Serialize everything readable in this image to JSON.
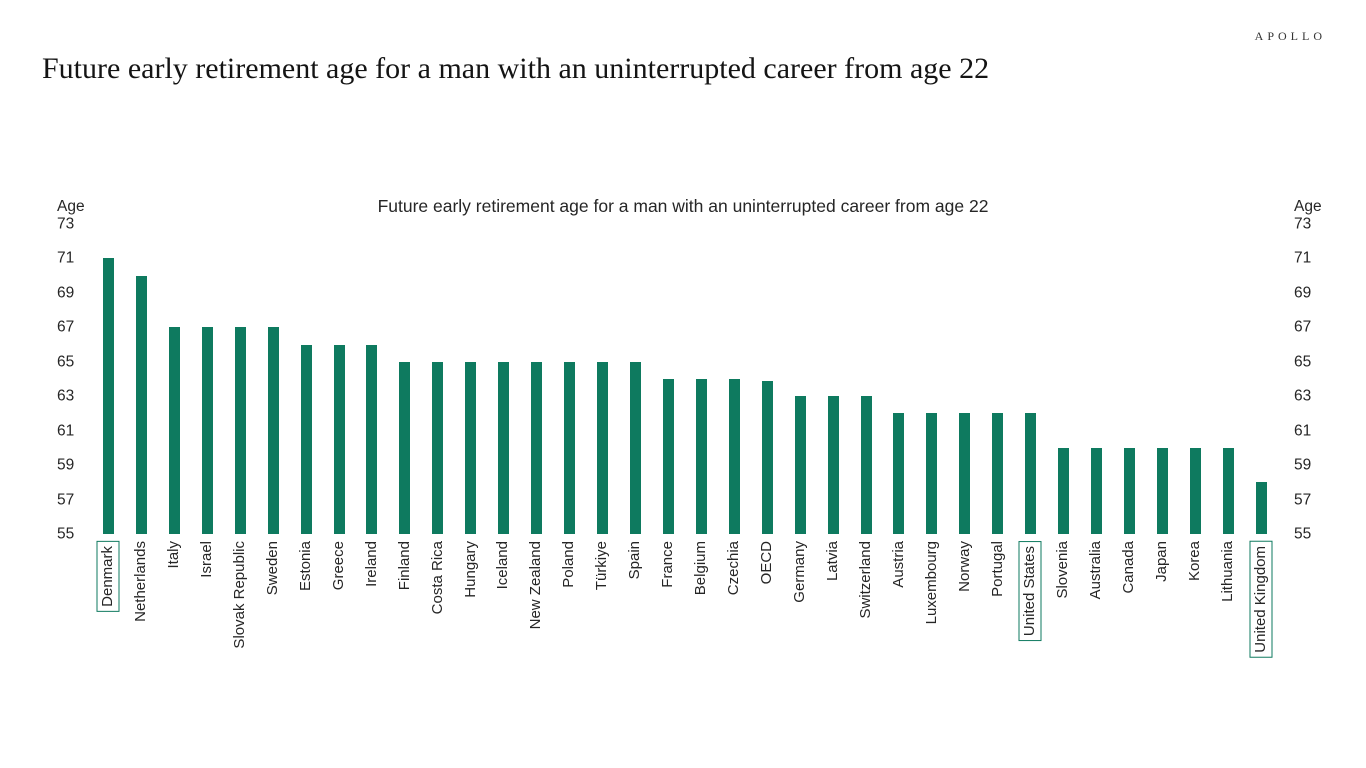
{
  "header": {
    "brand": "APOLLO",
    "title": "Future early retirement age for a man with an uninterrupted career from age 22"
  },
  "chart_data": {
    "type": "bar",
    "title": "Future early retirement age for a man with an uninterrupted career from age 22",
    "ylabel": "Age",
    "ylim": [
      55,
      73
    ],
    "yticks": [
      73,
      71,
      69,
      67,
      65,
      63,
      61,
      59,
      57,
      55
    ],
    "grid": false,
    "legend": false,
    "bar_color": "#0e7a5f",
    "highlight_box_color": "#0e7a5f",
    "categories": [
      "Denmark",
      "Netherlands",
      "Italy",
      "Israel",
      "Slovak Republic",
      "Sweden",
      "Estonia",
      "Greece",
      "Ireland",
      "Finland",
      "Costa Rica",
      "Hungary",
      "Iceland",
      "New Zealand",
      "Poland",
      "Türkiye",
      "Spain",
      "France",
      "Belgium",
      "Czechia",
      "OECD",
      "Germany",
      "Latvia",
      "Switzerland",
      "Austria",
      "Luxembourg",
      "Norway",
      "Portugal",
      "United States",
      "Slovenia",
      "Australia",
      "Canada",
      "Japan",
      "Korea",
      "Lithuania",
      "United Kingdom"
    ],
    "values": [
      71,
      70,
      67,
      67,
      67,
      67,
      66,
      66,
      66,
      65,
      65,
      65,
      65,
      65,
      65,
      65,
      65,
      64,
      64,
      64,
      63.9,
      63,
      63,
      63,
      62,
      62,
      62,
      62,
      62,
      60,
      60,
      60,
      60,
      60,
      60,
      58
    ],
    "highlighted_categories": [
      "Denmark",
      "United States",
      "United Kingdom"
    ]
  }
}
